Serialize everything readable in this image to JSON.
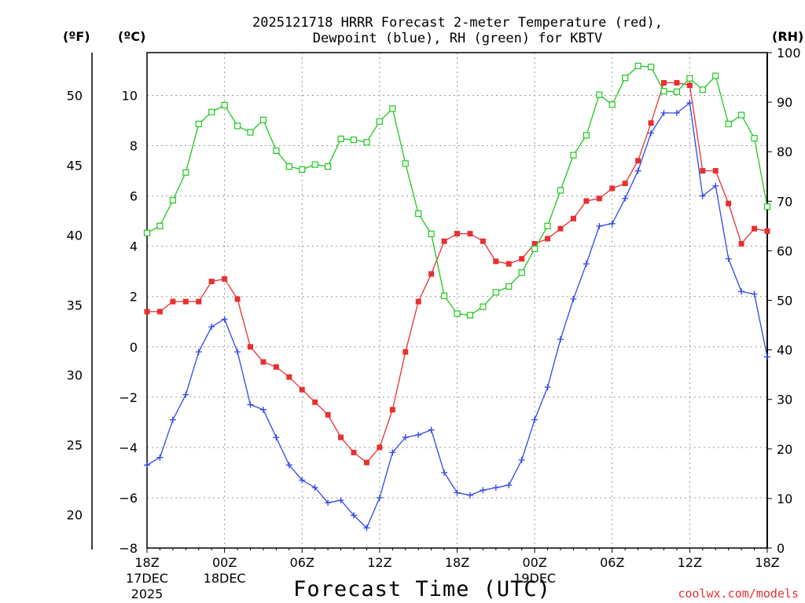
{
  "chart_data": {
    "type": "line",
    "title_line1": "2025121718 HRRR Forecast 2-meter Temperature (red),",
    "title_line2": "Dewpoint (blue), RH (green) for KBTV",
    "xlabel": "Forecast Time (UTC)",
    "units": {
      "fahrenheit": "(ºF)",
      "celsius": "(ºC)",
      "rh": "(RH)"
    },
    "credit": "coolwx.com/models",
    "x_range_hours": [
      0,
      48
    ],
    "celsius_range": [
      -8.0,
      11.7
    ],
    "rh_range": [
      0,
      100
    ],
    "fahrenheit_ticks": [
      "20",
      "25",
      "30",
      "35",
      "40",
      "45",
      "50"
    ],
    "celsius_ticks": [
      "−8",
      "−6",
      "−4",
      "−2",
      "0",
      "2",
      "4",
      "6",
      "8",
      "10"
    ],
    "rh_ticks": [
      "0",
      "10",
      "20",
      "30",
      "40",
      "50",
      "60",
      "70",
      "80",
      "90",
      "100"
    ],
    "x_ticks": [
      {
        "hour": 0,
        "line1": "18Z",
        "line2": "17DEC",
        "line3": "2025"
      },
      {
        "hour": 6,
        "line1": "00Z",
        "line2": "18DEC",
        "line3": ""
      },
      {
        "hour": 12,
        "line1": "06Z",
        "line2": "",
        "line3": ""
      },
      {
        "hour": 18,
        "line1": "12Z",
        "line2": "",
        "line3": ""
      },
      {
        "hour": 24,
        "line1": "18Z",
        "line2": "",
        "line3": ""
      },
      {
        "hour": 30,
        "line1": "00Z",
        "line2": "19DEC",
        "line3": ""
      },
      {
        "hour": 36,
        "line1": "06Z",
        "line2": "",
        "line3": ""
      },
      {
        "hour": 42,
        "line1": "12Z",
        "line2": "",
        "line3": ""
      },
      {
        "hour": 48,
        "line1": "18Z",
        "line2": "",
        "line3": ""
      }
    ],
    "series": [
      {
        "name": "Temperature",
        "unit": "C",
        "color": "#e83030",
        "marker": "filled-square",
        "values": [
          1.4,
          1.4,
          1.8,
          1.8,
          1.8,
          2.6,
          2.7,
          1.9,
          0.0,
          -0.6,
          -0.8,
          -1.2,
          -1.7,
          -2.2,
          -2.7,
          -3.6,
          -4.2,
          -4.6,
          -4.0,
          -2.5,
          -0.2,
          1.8,
          2.9,
          4.2,
          4.5,
          4.5,
          4.2,
          3.4,
          3.3,
          3.5,
          4.1,
          4.3,
          4.7,
          5.1,
          5.8,
          5.9,
          6.3,
          6.5,
          7.4,
          8.9,
          10.5,
          10.5,
          10.4,
          7.0,
          7.0,
          5.7,
          4.1,
          4.7,
          4.6
        ]
      },
      {
        "name": "Dewpoint",
        "unit": "C",
        "color": "#3048e8",
        "marker": "plus",
        "values": [
          -4.7,
          -4.4,
          -2.9,
          -1.9,
          -0.2,
          0.8,
          1.1,
          -0.2,
          -2.3,
          -2.5,
          -3.6,
          -4.7,
          -5.3,
          -5.6,
          -6.2,
          -6.1,
          -6.7,
          -7.2,
          -6.0,
          -4.2,
          -3.6,
          -3.5,
          -3.3,
          -5.0,
          -5.8,
          -5.9,
          -5.7,
          -5.6,
          -5.5,
          -4.5,
          -2.9,
          -1.6,
          0.3,
          1.9,
          3.3,
          4.8,
          4.9,
          5.9,
          7.0,
          8.5,
          9.3,
          9.3,
          9.7,
          6.0,
          6.4,
          3.5,
          2.2,
          2.1,
          -0.4
        ]
      },
      {
        "name": "RH",
        "unit": "%",
        "color": "#1ec81e",
        "marker": "open-square",
        "values": [
          63.6,
          65.0,
          70.2,
          75.8,
          85.6,
          88.0,
          89.4,
          85.2,
          83.9,
          86.4,
          80.2,
          77.0,
          76.4,
          77.4,
          77.0,
          82.6,
          82.4,
          81.9,
          86.1,
          88.7,
          77.6,
          67.5,
          63.4,
          50.9,
          47.3,
          47.0,
          48.7,
          51.6,
          52.8,
          55.6,
          60.4,
          65.0,
          72.2,
          79.3,
          83.3,
          91.5,
          89.5,
          94.9,
          97.3,
          97.1,
          92.2,
          92.1,
          94.8,
          92.5,
          95.3,
          85.6,
          87.4,
          82.7,
          68.9
        ]
      }
    ]
  }
}
